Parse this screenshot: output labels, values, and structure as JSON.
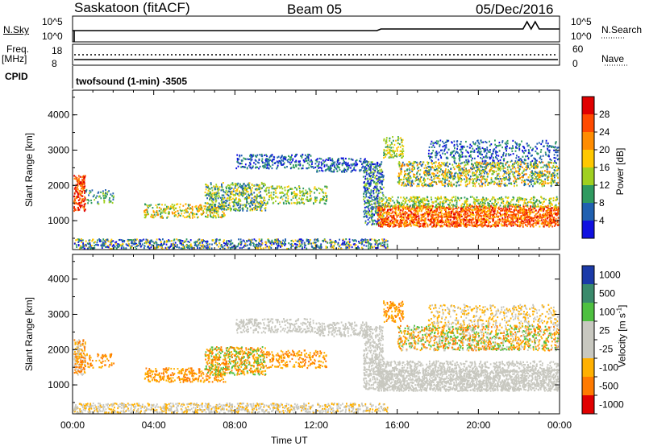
{
  "header": {
    "station": "Saskatoon (fitACF)",
    "beam": "Beam 05",
    "date": "05/Dec/2016"
  },
  "noise_panel": {
    "left_label": "N.Sky",
    "right_label": "N.Search",
    "left_ticks": [
      "10^5",
      "10^0"
    ],
    "right_ticks": [
      "10^5",
      "10^0"
    ]
  },
  "freq_panel": {
    "left_label_line1": "Freq.",
    "left_label_line2": "[MHz]",
    "right_label": "Nave",
    "left_ticks": [
      "18",
      "8"
    ],
    "right_ticks": [
      "60",
      "0"
    ]
  },
  "cpid": {
    "label": "CPID",
    "value": "twofsound (1-min) -3505"
  },
  "chart_data": [
    {
      "type": "heatmap",
      "panel": "power",
      "ylabel": "Slant Range [km]",
      "ylim": [
        180,
        4700
      ],
      "yticks": [
        "1000",
        "2000",
        "3000",
        "4000"
      ],
      "xticks": [
        "00:00",
        "04:00",
        "08:00",
        "12:00",
        "16:00",
        "20:00",
        "00:00"
      ],
      "xlim_hours": [
        0,
        24
      ],
      "grid": false,
      "colorbar": {
        "label": "Power [dB]",
        "ticks": [
          "28",
          "24",
          "20",
          "16",
          "12",
          "8",
          "4"
        ],
        "range": [
          0,
          32
        ],
        "colors": [
          "#e00000",
          "#ff4a00",
          "#ff8c00",
          "#ffc800",
          "#a0d020",
          "#2f9a60",
          "#2060b0",
          "#1010e0"
        ]
      }
    },
    {
      "type": "heatmap",
      "panel": "velocity",
      "ylabel": "Slant Range [km]",
      "ylim": [
        180,
        4700
      ],
      "yticks": [
        "1000",
        "2000",
        "3000",
        "4000"
      ],
      "xticks": [
        "00:00",
        "04:00",
        "08:00",
        "12:00",
        "16:00",
        "20:00",
        "00:00"
      ],
      "xlabel": "Time UT",
      "xlim_hours": [
        0,
        24
      ],
      "grid": false,
      "colorbar": {
        "label": "Velocity [m s",
        "label_sup": "-1",
        "label_end": "]",
        "ticks": [
          "1000",
          "500",
          "100",
          "25",
          "-25",
          "-100",
          "-500",
          "-1000"
        ],
        "colors": [
          "#1b3aa8",
          "#3a8a6c",
          "#4ec040",
          "#c8c8c0",
          "#c8c8c0",
          "#ffb000",
          "#ff7a00",
          "#e00000"
        ]
      }
    }
  ]
}
